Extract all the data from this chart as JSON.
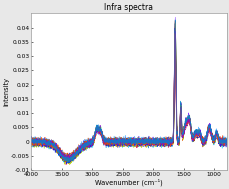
{
  "title": "Infra spectra",
  "xlabel": "Wavenumber (cm⁻¹)",
  "ylabel": "Intensity",
  "xlim": [
    4000,
    800
  ],
  "ylim": [
    -0.01,
    0.045
  ],
  "yticks": [
    -0.01,
    -0.005,
    0,
    0.005,
    0.01,
    0.015,
    0.02,
    0.025,
    0.03,
    0.035,
    0.04
  ],
  "xticks": [
    4000,
    3500,
    3000,
    2500,
    2000,
    1500,
    1000
  ],
  "background_color": "#e8e8e8",
  "plot_bg_color": "#ffffff",
  "line_colors": [
    "#0000ff",
    "#ff4400",
    "#cc6600",
    "#8800cc",
    "#0088cc",
    "#ff0000",
    "#00aa44",
    "#ff8800",
    "#6600ff",
    "#00ccff",
    "#cc0044",
    "#44aaff",
    "#ff6600",
    "#0044cc",
    "#aacc00",
    "#884400",
    "#0066aa",
    "#cc4400",
    "#ff88cc",
    "#4488ff"
  ],
  "n_lines": 25,
  "seed": 7,
  "title_fontsize": 5.5,
  "label_fontsize": 4.8,
  "tick_fontsize": 4.2
}
